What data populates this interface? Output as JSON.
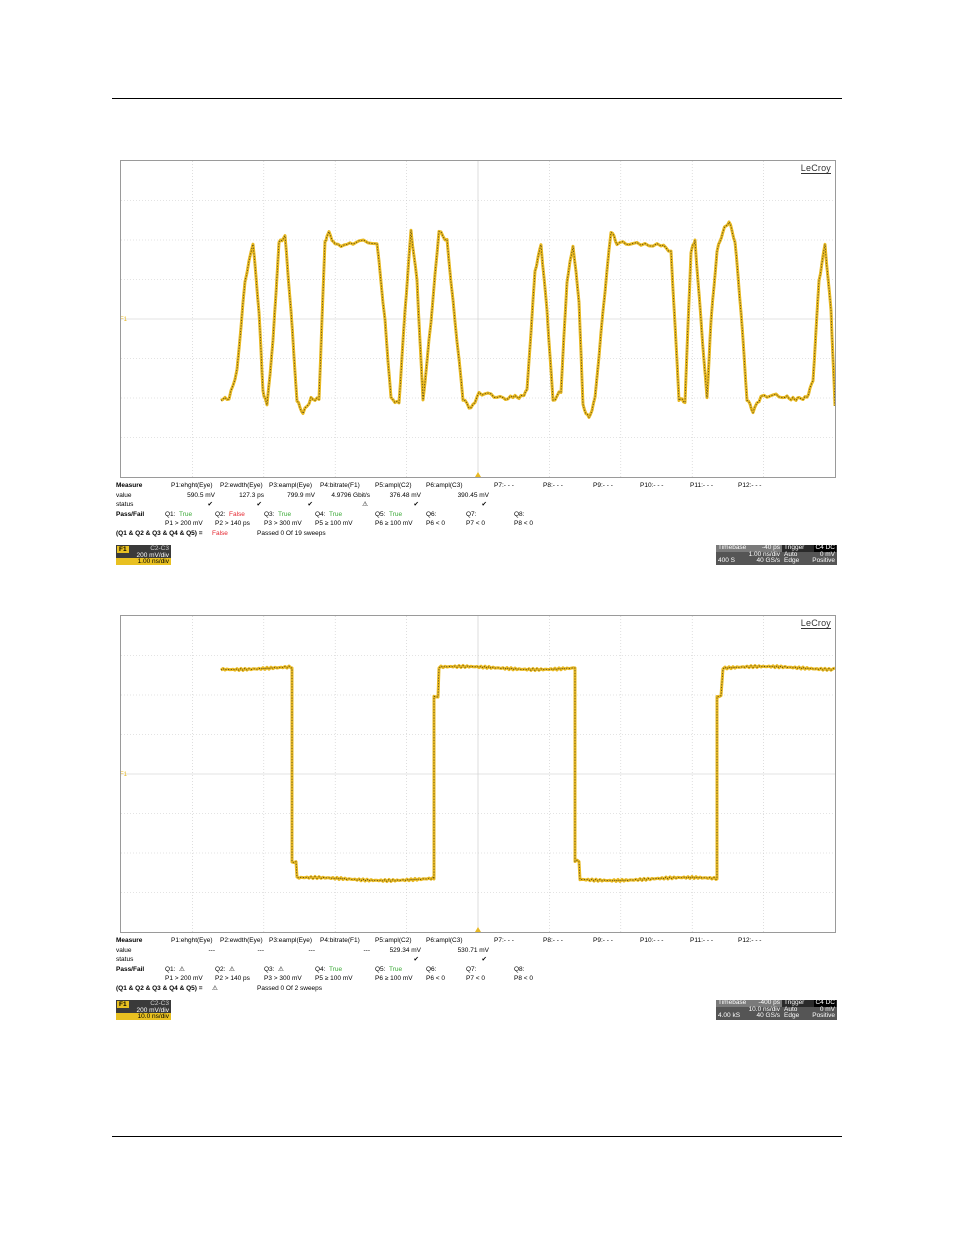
{
  "brand": "LeCroy",
  "colors": {
    "trace": "#e8b923",
    "trace_dark": "#3b3213",
    "grid": "#c8c8c8",
    "pass": "#39a935",
    "fail": "#e5262f"
  },
  "panels": [
    {
      "measure": {
        "header": [
          "Measure",
          "P1:ehght(Eye)",
          "P2:ewdth(Eye)",
          "P3:eampl(Eye)",
          "P4:bitrate(F1)",
          "P5:ampl(C2)",
          "P6:ampl(C3)",
          "P7:- - -",
          "P8:- - -",
          "P9:- - -",
          "P10:- - -",
          "P11:- - -",
          "P12:- - -"
        ],
        "value": [
          "value",
          "590.5 mV",
          "127.3 ps",
          "799.9 mV",
          "4.9796 Gbit/s",
          "376.48 mV",
          "390.45 mV"
        ],
        "status": [
          "status",
          "✔",
          "✔",
          "✔",
          "⚠",
          "✔",
          "✔"
        ]
      },
      "passfail": {
        "label": "Pass/Fail",
        "q": [
          {
            "name": "Q1:",
            "result": "True",
            "cond": "P1 > 200 mV",
            "state": "pass"
          },
          {
            "name": "Q2:",
            "result": "False",
            "cond": "P2 > 140 ps",
            "state": "fail"
          },
          {
            "name": "Q3:",
            "result": "True",
            "cond": "P3 > 300 mV",
            "state": "pass"
          },
          {
            "name": "Q4:",
            "result": "True",
            "cond": "P5 ≥ 100 mV",
            "state": "pass"
          },
          {
            "name": "Q5:",
            "result": "True",
            "cond": "P6 ≥ 100 mV",
            "state": "pass"
          },
          {
            "name": "Q6:",
            "result": "",
            "cond": "P6 < 0",
            "state": "none"
          },
          {
            "name": "Q7:",
            "result": "",
            "cond": "P7 < 0",
            "state": "none"
          },
          {
            "name": "Q8:",
            "result": "",
            "cond": "P8 < 0",
            "state": "none"
          }
        ],
        "summary_label": "(Q1 & Q2 & Q3 & Q4 & Q5) =",
        "summary_result": "False",
        "summary_state": "fail",
        "passed": "Passed  0   Of  19   sweeps"
      },
      "trace": {
        "tag": "F1",
        "v1": "C2-C3",
        "v2": "200 mV/div",
        "v3": "1.00 ns/div"
      },
      "timebase": {
        "label": "Timebase",
        "delay": "-40 ps",
        "tdiv": "1.00 ns/div",
        "samples": "400 S",
        "rate": "40 GS/s"
      },
      "trigger": {
        "label": "Trigger",
        "src": "C4 DC",
        "mode": "Auto",
        "level": "0 mV",
        "type": "Edge",
        "slope": "Positive"
      }
    },
    {
      "measure": {
        "header": [
          "Measure",
          "P1:ehght(Eye)",
          "P2:ewdth(Eye)",
          "P3:eampl(Eye)",
          "P4:bitrate(F1)",
          "P5:ampl(C2)",
          "P6:ampl(C3)",
          "P7:- - -",
          "P8:- - -",
          "P9:- - -",
          "P10:- - -",
          "P11:- - -",
          "P12:- - -"
        ],
        "value": [
          "value",
          "---",
          "---",
          "---",
          "---",
          "529.34 mV",
          "530.71 mV"
        ],
        "status": [
          "status",
          "",
          "",
          "",
          "",
          "✔",
          "✔"
        ]
      },
      "passfail": {
        "label": "Pass/Fail",
        "q": [
          {
            "name": "Q1:",
            "result": "⚠",
            "cond": "P1 > 200 mV",
            "state": "none"
          },
          {
            "name": "Q2:",
            "result": "⚠",
            "cond": "P2 > 140 ps",
            "state": "none"
          },
          {
            "name": "Q3:",
            "result": "⚠",
            "cond": "P3 > 300 mV",
            "state": "none"
          },
          {
            "name": "Q4:",
            "result": "True",
            "cond": "P5 ≥ 100 mV",
            "state": "pass"
          },
          {
            "name": "Q5:",
            "result": "True",
            "cond": "P6 ≥ 100 mV",
            "state": "pass"
          },
          {
            "name": "Q6:",
            "result": "",
            "cond": "P6 < 0",
            "state": "none"
          },
          {
            "name": "Q7:",
            "result": "",
            "cond": "P7 < 0",
            "state": "none"
          },
          {
            "name": "Q8:",
            "result": "",
            "cond": "P8 < 0",
            "state": "none"
          }
        ],
        "summary_label": "(Q1 & Q2 & Q3 & Q4 & Q5) =",
        "summary_result": "⚠",
        "summary_state": "none",
        "passed": "Passed  0   Of  2   sweeps"
      },
      "trace": {
        "tag": "F1",
        "v1": "C2-C3",
        "v2": "200 mV/div",
        "v3": "10.0 ns/div"
      },
      "timebase": {
        "label": "Timebase",
        "delay": "-400 ps",
        "tdiv": "10.0 ns/div",
        "samples": "4.00 kS",
        "rate": "40 GS/s"
      },
      "trigger": {
        "label": "Trigger",
        "src": "C4 DC",
        "mode": "Auto",
        "level": "0 mV",
        "type": "Edge",
        "slope": "Positive"
      }
    }
  ]
}
